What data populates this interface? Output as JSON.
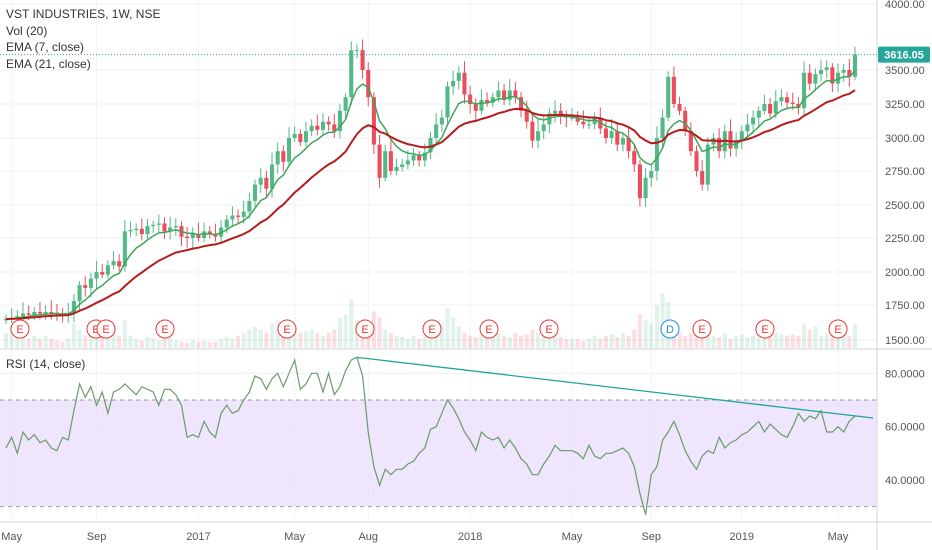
{
  "header": {
    "symbol": "VST INDUSTRIES, 1W, NSE",
    "vol": "Vol (20)",
    "ema7": "EMA (7, close)",
    "ema21": "EMA (21, close)"
  },
  "rsi_header": "RSI (14, close)",
  "last_price_label": "3616.05",
  "colors": {
    "up": "#53b987",
    "down": "#eb4d5c",
    "ema7": "#3fa55a",
    "ema21": "#b71c1c",
    "rsi_line": "#6a9b6a",
    "rsi_band": "#e9dcfb",
    "trendline": "#26a69a",
    "price_tag": "#26a69a",
    "event_E": "#e53935",
    "event_D": "#1e88e5"
  },
  "chart_data": [
    {
      "type": "candlestick",
      "title": "VST INDUSTRIES, 1W, NSE",
      "x_tick_labels": [
        "May",
        "Sep",
        "2017",
        "May",
        "Aug",
        "2018",
        "May",
        "Sep",
        "2019",
        "May"
      ],
      "x_tick_weeks": [
        1,
        16,
        34,
        51,
        64,
        82,
        100,
        114,
        130,
        147
      ],
      "y_ticks": [
        "1500.00",
        "1750.00",
        "2000.00",
        "2250.00",
        "2500.00",
        "2750.00",
        "3000.00",
        "3250.00",
        "3500.00",
        "4000.00"
      ],
      "ylim": [
        1500,
        4000
      ],
      "last_price": 3616.05,
      "closes": [
        1650,
        1660,
        1670,
        1690,
        1680,
        1700,
        1690,
        1700,
        1695,
        1690,
        1680,
        1690,
        1780,
        1900,
        1880,
        1950,
        2000,
        1980,
        2050,
        2080,
        2040,
        2300,
        2310,
        2320,
        2280,
        2340,
        2350,
        2360,
        2300,
        2330,
        2340,
        2260,
        2250,
        2280,
        2250,
        2300,
        2280,
        2260,
        2330,
        2390,
        2420,
        2410,
        2450,
        2530,
        2650,
        2700,
        2620,
        2800,
        2900,
        2820,
        3000,
        3030,
        2970,
        3050,
        3090,
        3060,
        3120,
        3100,
        3050,
        3200,
        3300,
        3650,
        3650,
        3500,
        3300,
        2950,
        2700,
        2900,
        2750,
        2780,
        2800,
        2830,
        2870,
        2830,
        2890,
        3000,
        3100,
        3150,
        3380,
        3420,
        3480,
        3320,
        3250,
        3200,
        3280,
        3260,
        3300,
        3350,
        3280,
        3350,
        3300,
        3200,
        3120,
        2980,
        3050,
        3100,
        3180,
        3200,
        3170,
        3150,
        3150,
        3120,
        3100,
        3100,
        3150,
        3070,
        3000,
        3050,
        2950,
        3000,
        2900,
        2800,
        2550,
        2700,
        2750,
        3000,
        3150,
        3450,
        3250,
        3200,
        3050,
        2900,
        2750,
        2650,
        2950,
        3000,
        2900,
        3050,
        2920,
        2980,
        3050,
        3100,
        3150,
        3200,
        3250,
        3180,
        3270,
        3300,
        3260,
        3250,
        3220,
        3480,
        3400,
        3470,
        3500,
        3520,
        3400,
        3480,
        3500,
        3450,
        3616.05
      ],
      "series": [
        {
          "name": "EMA (7, close)",
          "values": [
            1650,
            1653,
            1656,
            1664,
            1668,
            1677,
            1680,
            1685,
            1688,
            1689,
            1686,
            1687,
            1710,
            1757,
            1788,
            1828,
            1871,
            1898,
            1936,
            1972,
            1989,
            2067,
            2128,
            2176,
            2202,
            2237,
            2265,
            2289,
            2292,
            2302,
            2312,
            2299,
            2287,
            2285,
            2276,
            2282,
            2281,
            2276,
            2289,
            2314,
            2341,
            2358,
            2381,
            2418,
            2476,
            2532,
            2554,
            2616,
            2687,
            2720,
            2790,
            2850,
            2880,
            2922,
            2964,
            2988,
            3021,
            3041,
            3043,
            3082,
            3137,
            3265,
            3361,
            3396,
            3372,
            3267,
            3125,
            3069,
            2989,
            2937,
            2903,
            2885,
            2881,
            2868,
            2873,
            2905,
            2954,
            3003,
            3097,
            3178,
            3254,
            3271,
            3266,
            3250,
            3257,
            3258,
            3269,
            3289,
            3287,
            3303,
            3302,
            3276,
            3237,
            3173,
            3142,
            3132,
            3144,
            3158,
            3161,
            3158,
            3156,
            3147,
            3135,
            3126,
            3132,
            3116,
            3087,
            3078,
            3046,
            3035,
            3001,
            2951,
            2851,
            2813,
            2797,
            2848,
            2923,
            3055,
            3104,
            3128,
            3108,
            3056,
            2980,
            2898,
            2911,
            2933,
            2925,
            2956,
            2947,
            2955,
            2979,
            3009,
            3044,
            3083,
            3125,
            3139,
            3171,
            3203,
            3217,
            3225,
            3224,
            3288,
            3316,
            3355,
            3391,
            3423,
            3417,
            3433,
            3450,
            3450,
            3492
          ]
        },
        {
          "name": "EMA (21, close)",
          "values": [
            1650,
            1651,
            1653,
            1656,
            1659,
            1663,
            1666,
            1670,
            1672,
            1675,
            1676,
            1678,
            1689,
            1709,
            1724,
            1744,
            1767,
            1786,
            1810,
            1834,
            1852,
            1893,
            1931,
            1967,
            1996,
            2027,
            2056,
            2083,
            2103,
            2124,
            2143,
            2152,
            2161,
            2172,
            2179,
            2190,
            2198,
            2203,
            2215,
            2231,
            2248,
            2263,
            2280,
            2303,
            2335,
            2368,
            2391,
            2428,
            2471,
            2503,
            2548,
            2592,
            2626,
            2664,
            2702,
            2735,
            2770,
            2800,
            2823,
            2857,
            2897,
            2966,
            3028,
            3071,
            3094,
            3081,
            3045,
            3032,
            3007,
            2986,
            2968,
            2954,
            2945,
            2934,
            2929,
            2935,
            2950,
            2968,
            3006,
            3044,
            3083,
            3105,
            3118,
            3126,
            3140,
            3151,
            3165,
            3182,
            3192,
            3206,
            3214,
            3213,
            3205,
            3184,
            3172,
            3166,
            3167,
            3170,
            3170,
            3168,
            3166,
            3162,
            3156,
            3151,
            3151,
            3144,
            3131,
            3124,
            3108,
            3098,
            3080,
            3055,
            3009,
            2981,
            2960,
            2964,
            2981,
            3024,
            3045,
            3059,
            3058,
            3043,
            3016,
            2983,
            2980,
            2982,
            2974,
            2980,
            2974,
            2974,
            2980,
            2991,
            3005,
            3023,
            3044,
            3056,
            3075,
            3095,
            3110,
            3123,
            3132,
            3164,
            3185,
            3211,
            3237,
            3263,
            3275,
            3294,
            3313,
            3325,
            3352
          ]
        }
      ]
    },
    {
      "type": "bar",
      "title": "Vol (20)",
      "values": [
        25,
        35,
        20,
        20,
        15,
        20,
        15,
        20,
        15,
        12,
        10,
        15,
        40,
        30,
        20,
        25,
        28,
        20,
        22,
        35,
        20,
        45,
        20,
        15,
        12,
        18,
        16,
        12,
        15,
        18,
        12,
        10,
        8,
        12,
        10,
        12,
        10,
        10,
        14,
        18,
        15,
        20,
        25,
        30,
        35,
        30,
        25,
        40,
        45,
        30,
        30,
        35,
        25,
        28,
        30,
        25,
        20,
        25,
        30,
        50,
        55,
        80,
        45,
        40,
        35,
        60,
        50,
        30,
        25,
        20,
        18,
        15,
        20,
        15,
        20,
        30,
        40,
        40,
        65,
        50,
        35,
        25,
        20,
        18,
        22,
        20,
        18,
        25,
        20,
        18,
        25,
        20,
        22,
        30,
        25,
        20,
        25,
        20,
        18,
        15,
        15,
        15,
        12,
        15,
        20,
        15,
        20,
        22,
        18,
        25,
        20,
        30,
        55,
        45,
        40,
        70,
        90,
        75,
        35,
        25,
        20,
        25,
        30,
        25,
        28,
        20,
        18,
        25,
        15,
        20,
        22,
        18,
        20,
        22,
        35,
        20,
        25,
        22,
        20,
        22,
        20,
        40,
        30,
        35,
        20,
        25,
        20,
        22,
        30,
        20,
        40
      ]
    },
    {
      "type": "line",
      "title": "RSI (14, close)",
      "y_ticks": [
        "40.0000",
        "60.0000",
        "80.0000"
      ],
      "ylim": [
        25,
        88
      ],
      "bands": [
        30,
        70
      ],
      "values": [
        52,
        56,
        50,
        58,
        55,
        57,
        54,
        55,
        52,
        51,
        56,
        55,
        66,
        76,
        71,
        75,
        68,
        73,
        65,
        73,
        74,
        76,
        74,
        72,
        75,
        74,
        73,
        68,
        74,
        74,
        72,
        68,
        56,
        57,
        56,
        62,
        58,
        56,
        65,
        68,
        65,
        66,
        70,
        73,
        79,
        78,
        74,
        78,
        80,
        75,
        80,
        85,
        74,
        76,
        80,
        80,
        73,
        80,
        72,
        75,
        81,
        85,
        86,
        79,
        58,
        45,
        38,
        44,
        42,
        44,
        44,
        46,
        47,
        50,
        52,
        59,
        60,
        65,
        70,
        67,
        63,
        58,
        55,
        51,
        58,
        56,
        55,
        56,
        52,
        55,
        52,
        48,
        46,
        42,
        42,
        46,
        49,
        53,
        51,
        51,
        51,
        50,
        48,
        53,
        49,
        48,
        50,
        50,
        51,
        52,
        50,
        45,
        35,
        27,
        42,
        45,
        55,
        58,
        62,
        57,
        51,
        47,
        44,
        49,
        51,
        50,
        56,
        52,
        54,
        55,
        57,
        58,
        60,
        62,
        58,
        61,
        59,
        57,
        56,
        60,
        65,
        62,
        64,
        63,
        66,
        58,
        58,
        60,
        58,
        62,
        64
      ]
    }
  ]
}
